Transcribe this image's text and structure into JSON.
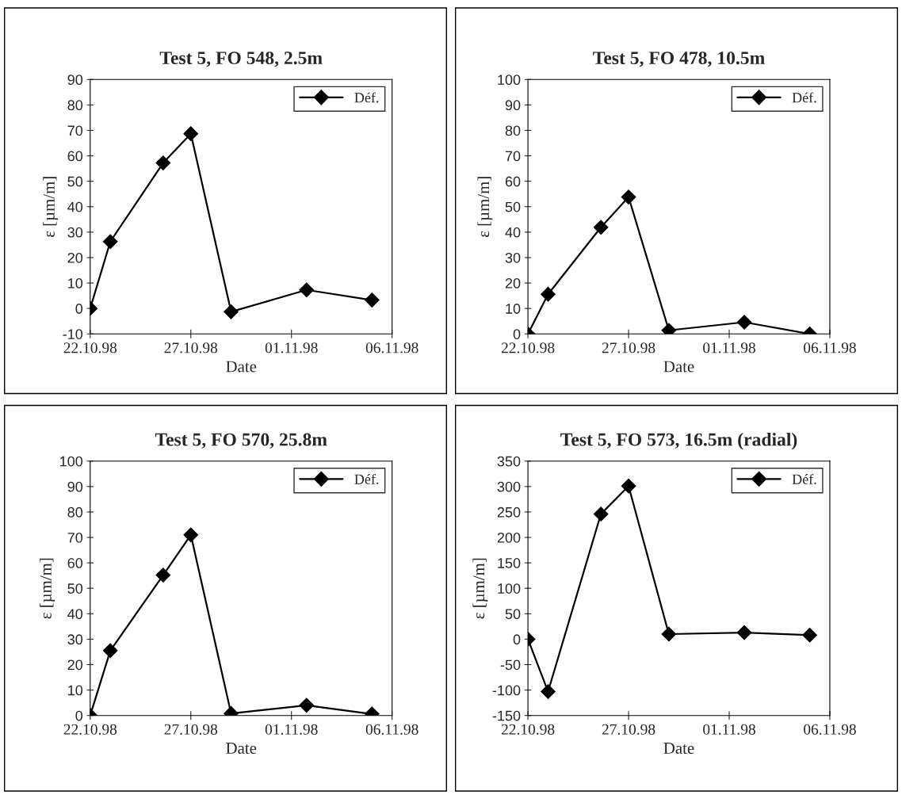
{
  "chart_data": [
    {
      "type": "line",
      "title": "Test 5, FO 548, 2.5m",
      "xlabel": "Date",
      "ylabel": "ε [µm/m]",
      "x": [
        "1998-10-22",
        "1998-10-23",
        "1998-10-25T15:00",
        "1998-10-27",
        "1998-10-29",
        "1998-11-01T18:00",
        "1998-11-05"
      ],
      "series": [
        {
          "name": "Déf.",
          "color": "#000000",
          "values": [
            0,
            26.3,
            57.2,
            68.7,
            -1.3,
            7.3,
            3.3
          ]
        }
      ],
      "xlim": [
        "1998-10-22",
        "1998-11-06"
      ],
      "xticks": [
        {
          "value": "1998-10-22",
          "label": "22.10.98"
        },
        {
          "value": "1998-10-27",
          "label": "27.10.98"
        },
        {
          "value": "1998-11-01",
          "label": "01.11.98"
        },
        {
          "value": "1998-11-06",
          "label": "06.11.98"
        }
      ],
      "ylim": [
        -10,
        90
      ],
      "yticks": [
        -10,
        0,
        10,
        20,
        30,
        40,
        50,
        60,
        70,
        80,
        90
      ],
      "marker": "diamond",
      "line_style": "solid",
      "legend": "top right",
      "grid": false
    },
    {
      "type": "line",
      "title": "Test 5, FO 478, 10.5m",
      "xlabel": "Date",
      "ylabel": "ε [µm/m]",
      "x": [
        "1998-10-22",
        "1998-10-23",
        "1998-10-25T15:00",
        "1998-10-27",
        "1998-10-29",
        "1998-11-01T18:00",
        "1998-11-05"
      ],
      "series": [
        {
          "name": "Déf.",
          "color": "#000000",
          "values": [
            0,
            15.6,
            41.9,
            53.8,
            1.4,
            4.6,
            0
          ]
        }
      ],
      "xlim": [
        "1998-10-22",
        "1998-11-06"
      ],
      "xticks": [
        {
          "value": "1998-10-22",
          "label": "22.10.98"
        },
        {
          "value": "1998-10-27",
          "label": "27.10.98"
        },
        {
          "value": "1998-11-01",
          "label": "01.11.98"
        },
        {
          "value": "1998-11-06",
          "label": "06.11.98"
        }
      ],
      "ylim": [
        0,
        100
      ],
      "yticks": [
        0,
        10,
        20,
        30,
        40,
        50,
        60,
        70,
        80,
        90,
        100
      ],
      "marker": "diamond",
      "line_style": "solid",
      "legend": "top right",
      "grid": false
    },
    {
      "type": "line",
      "title": "Test 5, FO 570, 25.8m",
      "xlabel": "Date",
      "ylabel": "ε [µm/m]",
      "x": [
        "1998-10-22",
        "1998-10-23",
        "1998-10-25T15:00",
        "1998-10-27",
        "1998-10-29",
        "1998-11-01T18:00",
        "1998-11-05"
      ],
      "series": [
        {
          "name": "Déf.",
          "color": "#000000",
          "values": [
            0,
            25.5,
            55.2,
            71.0,
            0.8,
            4.0,
            0.6
          ]
        }
      ],
      "xlim": [
        "1998-10-22",
        "1998-11-06"
      ],
      "xticks": [
        {
          "value": "1998-10-22",
          "label": "22.10.98"
        },
        {
          "value": "1998-10-27",
          "label": "27.10.98"
        },
        {
          "value": "1998-11-01",
          "label": "01.11.98"
        },
        {
          "value": "1998-11-06",
          "label": "06.11.98"
        }
      ],
      "ylim": [
        0,
        100
      ],
      "yticks": [
        0,
        10,
        20,
        30,
        40,
        50,
        60,
        70,
        80,
        90,
        100
      ],
      "marker": "diamond",
      "line_style": "solid",
      "legend": "top right",
      "grid": false
    },
    {
      "type": "line",
      "title": "Test 5, FO 573, 16.5m (radial)",
      "xlabel": "Date",
      "ylabel": "ε [µm/m]",
      "x": [
        "1998-10-22",
        "1998-10-23",
        "1998-10-25T15:00",
        "1998-10-27",
        "1998-10-29",
        "1998-11-01T18:00",
        "1998-11-05"
      ],
      "series": [
        {
          "name": "Déf.",
          "color": "#000000",
          "values": [
            0,
            -103,
            246,
            301,
            10,
            13,
            8
          ]
        }
      ],
      "xlim": [
        "1998-10-22",
        "1998-11-06"
      ],
      "xticks": [
        {
          "value": "1998-10-22",
          "label": "22.10.98"
        },
        {
          "value": "1998-10-27",
          "label": "27.10.98"
        },
        {
          "value": "1998-11-01",
          "label": "01.11.98"
        },
        {
          "value": "1998-11-06",
          "label": "06.11.98"
        }
      ],
      "ylim": [
        -150,
        350
      ],
      "yticks": [
        -150,
        -100,
        -50,
        0,
        50,
        100,
        150,
        200,
        250,
        300,
        350
      ],
      "marker": "diamond",
      "line_style": "solid",
      "legend": "top right",
      "grid": false
    }
  ]
}
